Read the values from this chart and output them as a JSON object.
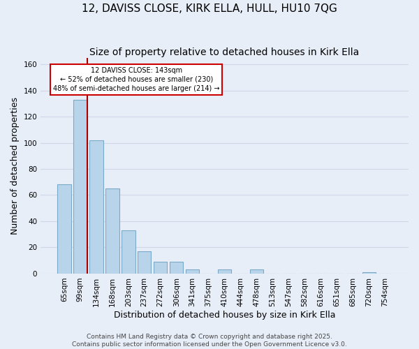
{
  "title": "12, DAVISS CLOSE, KIRK ELLA, HULL, HU10 7QG",
  "subtitle": "Size of property relative to detached houses in Kirk Ella",
  "xlabel": "Distribution of detached houses by size in Kirk Ella",
  "ylabel": "Number of detached properties",
  "bar_labels": [
    "65sqm",
    "99sqm",
    "134sqm",
    "168sqm",
    "203sqm",
    "237sqm",
    "272sqm",
    "306sqm",
    "341sqm",
    "375sqm",
    "410sqm",
    "444sqm",
    "478sqm",
    "513sqm",
    "547sqm",
    "582sqm",
    "616sqm",
    "651sqm",
    "685sqm",
    "720sqm",
    "754sqm"
  ],
  "bar_values": [
    68,
    133,
    102,
    65,
    33,
    17,
    9,
    9,
    3,
    0,
    3,
    0,
    3,
    0,
    0,
    0,
    0,
    0,
    0,
    1,
    0
  ],
  "bar_color": "#b8d4ea",
  "bar_edge_color": "#7aaac8",
  "ylim": [
    0,
    165
  ],
  "yticks": [
    0,
    20,
    40,
    60,
    80,
    100,
    120,
    140,
    160
  ],
  "vline_color": "#aa0000",
  "annotation_title": "12 DAVISS CLOSE: 143sqm",
  "annotation_line1": "← 52% of detached houses are smaller (230)",
  "annotation_line2": "48% of semi-detached houses are larger (214) →",
  "annotation_box_color": "#ffffff",
  "annotation_box_edge": "#cc0000",
  "footer1": "Contains HM Land Registry data © Crown copyright and database right 2025.",
  "footer2": "Contains public sector information licensed under the Open Government Licence v3.0.",
  "background_color": "#e8eef8",
  "grid_color": "#d0d8e8",
  "title_fontsize": 11,
  "subtitle_fontsize": 10,
  "label_fontsize": 9,
  "tick_fontsize": 7.5,
  "footer_fontsize": 6.5
}
